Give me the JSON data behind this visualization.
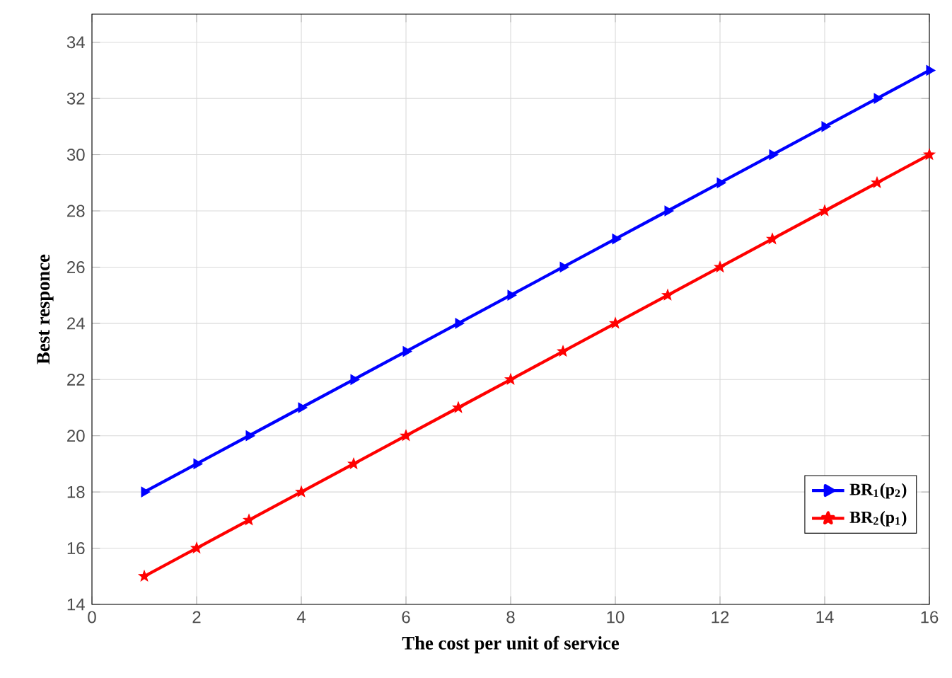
{
  "chart_data": {
    "type": "line",
    "xlabel": "The cost per unit of service",
    "ylabel": "Best responce",
    "x": [
      1,
      2,
      3,
      4,
      5,
      6,
      7,
      8,
      9,
      10,
      11,
      12,
      13,
      14,
      15,
      16
    ],
    "series": [
      {
        "name": "BR$_{1}$(p$_{2}$)",
        "color": "#0000ff",
        "marker": "triangle",
        "values": [
          18,
          19,
          20,
          21,
          22,
          23,
          24,
          25,
          26,
          27,
          28,
          29,
          30,
          31,
          32,
          33
        ]
      },
      {
        "name": "BR$_{2}$(p$_{1}$)",
        "color": "#ff0000",
        "marker": "star",
        "values": [
          15,
          16,
          17,
          18,
          19,
          20,
          21,
          22,
          23,
          24,
          25,
          26,
          27,
          28,
          29,
          30
        ]
      }
    ],
    "xlim": [
      0,
      16
    ],
    "ylim": [
      14,
      35
    ],
    "xticks": [
      0,
      2,
      4,
      6,
      8,
      10,
      12,
      14,
      16
    ],
    "yticks": [
      14,
      16,
      18,
      20,
      22,
      24,
      26,
      28,
      30,
      32,
      34
    ],
    "grid": true,
    "legend": "bottom right",
    "line_style": "solid"
  }
}
